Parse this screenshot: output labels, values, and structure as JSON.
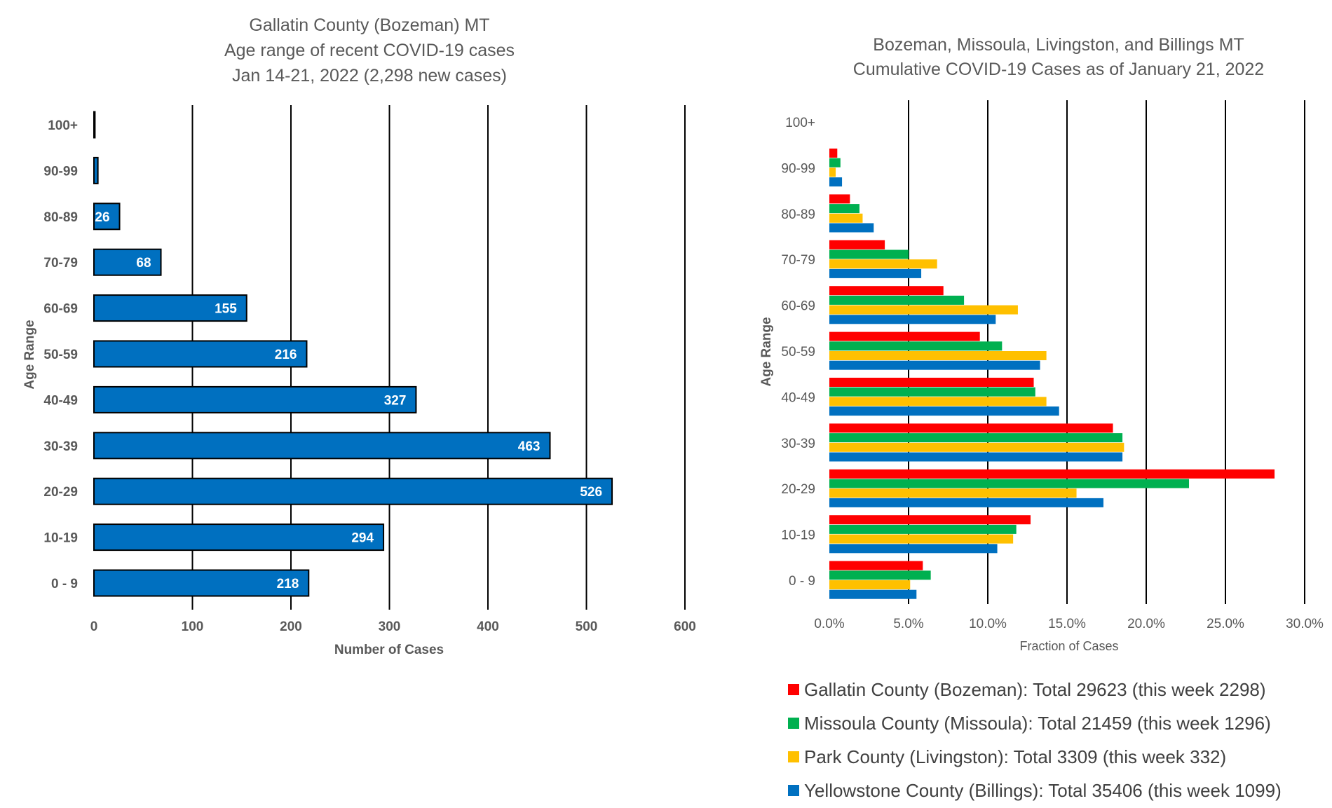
{
  "chart_data": [
    {
      "type": "bar",
      "orientation": "horizontal",
      "title": [
        "Gallatin County (Bozeman) MT",
        "Age range of recent COVID-19 cases",
        "Jan 14-21, 2022 (2,298 new cases)"
      ],
      "xlabel": "Number of Cases",
      "ylabel": "Age Range",
      "xlim": [
        0,
        600
      ],
      "xticks": [
        "0",
        "100",
        "200",
        "300",
        "400",
        "500",
        "600"
      ],
      "categories": [
        "0 - 9",
        "10-19",
        "20-29",
        "30-39",
        "40-49",
        "50-59",
        "60-69",
        "70-79",
        "80-89",
        "90-99",
        "100+"
      ],
      "values": [
        218,
        294,
        526,
        463,
        327,
        216,
        155,
        68,
        26,
        4,
        1
      ],
      "data_labels": [
        "218",
        "294",
        "526",
        "463",
        "327",
        "216",
        "155",
        "68",
        "26",
        "",
        ""
      ],
      "bar_color": "#0070c0",
      "grid": "vertical"
    },
    {
      "type": "bar",
      "orientation": "horizontal",
      "title": [
        "Bozeman, Missoula, Livingston, and Billings MT",
        "Cumulative COVID-19 Cases as of January 21, 2022"
      ],
      "xlabel": "Fraction of Cases",
      "ylabel": "Age Range",
      "xlim": [
        0,
        30
      ],
      "xticks": [
        "0.0%",
        "5.0%",
        "10.0%",
        "15.0%",
        "20.0%",
        "25.0%",
        "30.0%"
      ],
      "categories": [
        "0 - 9",
        "10-19",
        "20-29",
        "30-39",
        "40-49",
        "50-59",
        "60-69",
        "70-79",
        "80-89",
        "90-99",
        "100+"
      ],
      "series": [
        {
          "name": "Gallatin County (Bozeman): Total 29623 (this week 2298)",
          "color": "#ff0000",
          "values": [
            5.9,
            12.7,
            28.1,
            17.9,
            12.9,
            9.5,
            7.2,
            3.5,
            1.3,
            0.5,
            0.0
          ]
        },
        {
          "name": "Missoula County (Missoula): Total 21459 (this week 1296)",
          "color": "#00b050",
          "values": [
            6.4,
            11.8,
            22.7,
            18.5,
            13.0,
            10.9,
            8.5,
            5.0,
            1.9,
            0.7,
            0.0
          ]
        },
        {
          "name": "Park County (Livingston): Total 3309 (this week 332)",
          "color": "#ffc000",
          "values": [
            5.1,
            11.6,
            15.6,
            18.6,
            13.7,
            13.7,
            11.9,
            6.8,
            2.1,
            0.4,
            0.0
          ]
        },
        {
          "name": "Yellowstone County (Billings): Total 35406 (this week 1099)",
          "color": "#0070c0",
          "values": [
            5.5,
            10.6,
            17.3,
            18.5,
            14.5,
            13.3,
            10.5,
            5.8,
            2.8,
            0.8,
            0.0
          ]
        }
      ],
      "legend": "bottom",
      "grid": "vertical"
    }
  ]
}
